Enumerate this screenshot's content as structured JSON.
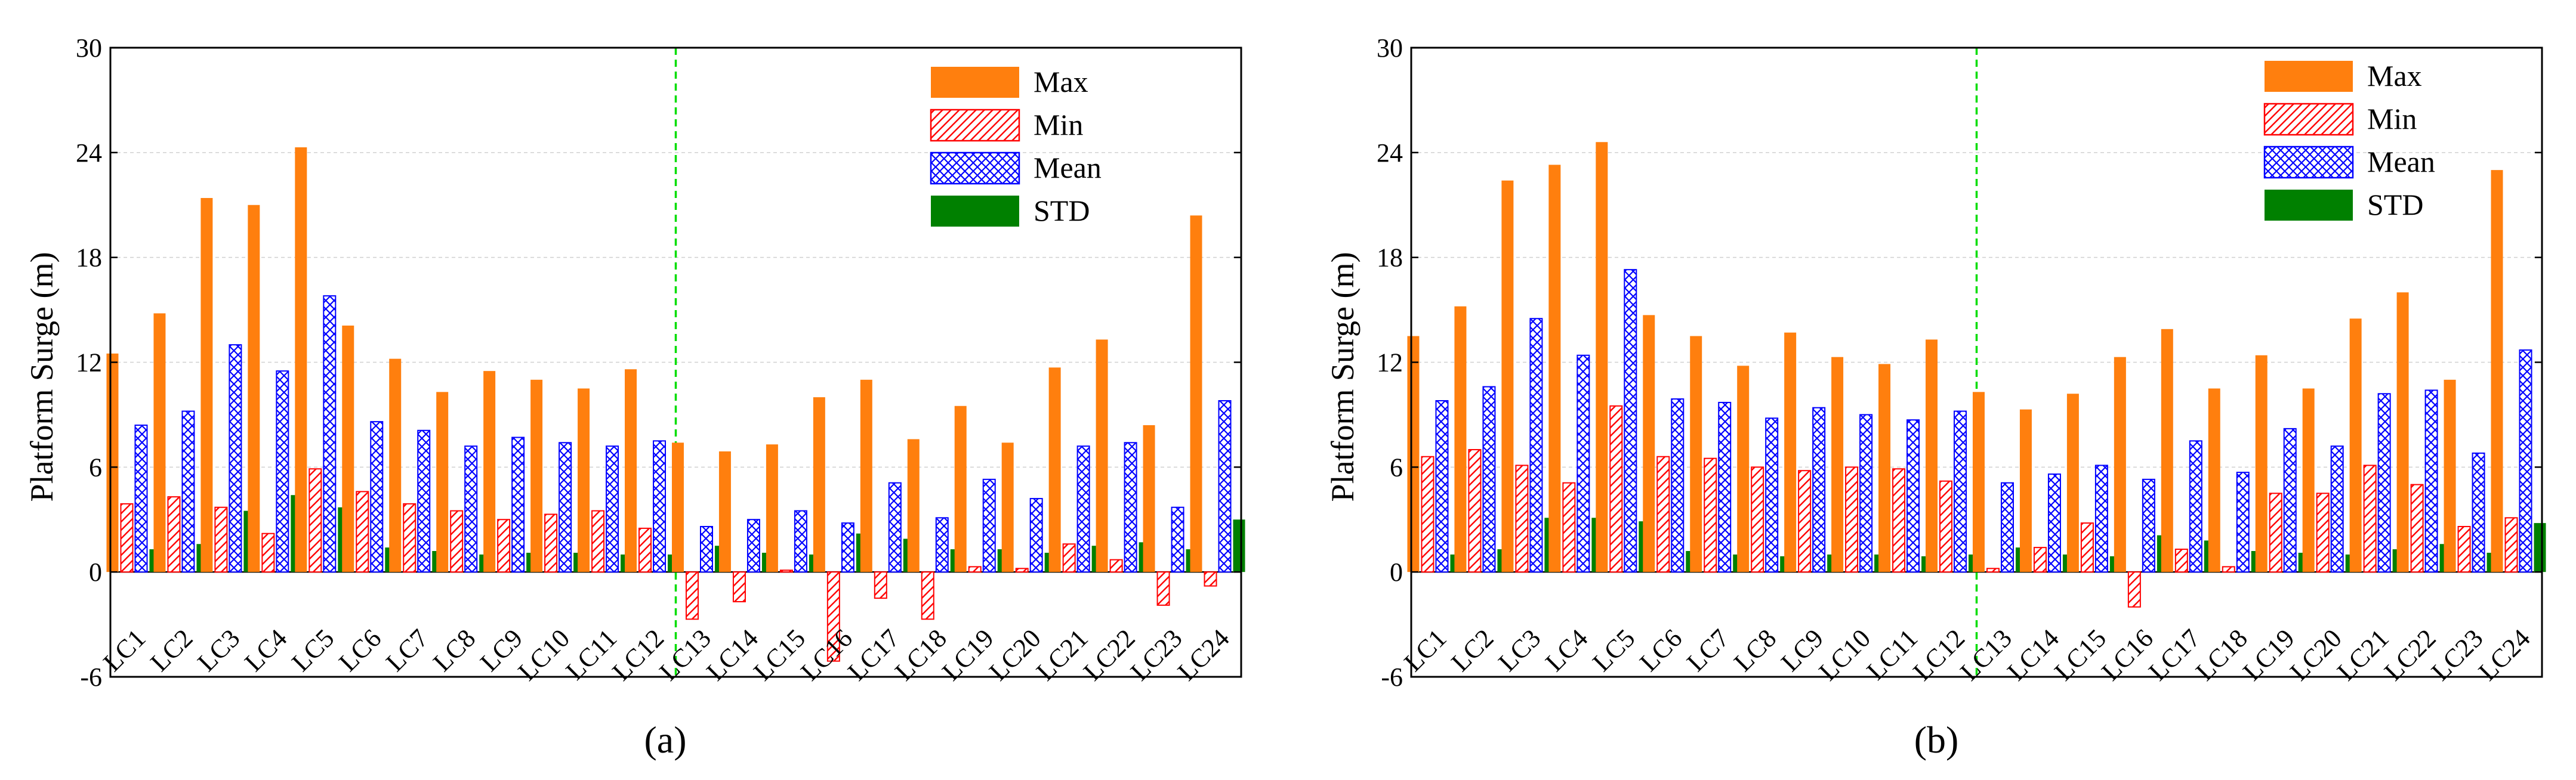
{
  "figure": {
    "panel_labels": [
      "(a)",
      "(b)"
    ]
  },
  "colors": {
    "max": "#ff7f0e",
    "min": "#ff0000",
    "mean": "#0000ff",
    "std": "#008000",
    "divider": "#00dd00",
    "grid": "#d0d0d0",
    "axis": "#000000"
  },
  "chart_data": [
    {
      "type": "bar",
      "panel": "(a)",
      "title": "",
      "xlabel": "",
      "ylabel": "Platform Surge (m)",
      "ylim": [
        -6,
        30
      ],
      "yticks": [
        -6,
        0,
        6,
        12,
        18,
        24,
        30
      ],
      "grid": true,
      "legend_position": "top-right",
      "divider_after": "LC12",
      "categories": [
        "LC1",
        "LC2",
        "LC3",
        "LC4",
        "LC5",
        "LC6",
        "LC7",
        "LC8",
        "LC9",
        "LC10",
        "LC11",
        "LC12",
        "LC13",
        "LC14",
        "LC15",
        "LC16",
        "LC17",
        "LC18",
        "LC19",
        "LC20",
        "LC21",
        "LC22",
        "LC23",
        "LC24"
      ],
      "series": [
        {
          "name": "Max",
          "values": [
            12.5,
            14.8,
            21.4,
            21.0,
            24.3,
            14.1,
            12.2,
            10.3,
            11.5,
            11.0,
            10.5,
            11.6,
            7.4,
            6.9,
            7.3,
            10.0,
            11.0,
            7.6,
            9.5,
            7.4,
            11.7,
            13.3,
            8.4,
            20.4
          ]
        },
        {
          "name": "Min",
          "values": [
            3.9,
            4.3,
            3.7,
            2.2,
            5.9,
            4.6,
            3.9,
            3.5,
            3.0,
            3.3,
            3.5,
            2.5,
            -2.7,
            -1.7,
            0.1,
            -5.1,
            -1.5,
            -2.7,
            0.3,
            0.2,
            1.6,
            0.7,
            -1.9,
            -0.8
          ]
        },
        {
          "name": "Mean",
          "values": [
            8.4,
            9.2,
            13.0,
            11.5,
            15.8,
            8.6,
            8.1,
            7.2,
            7.7,
            7.4,
            7.2,
            7.5,
            2.6,
            3.0,
            3.5,
            2.8,
            5.1,
            3.1,
            5.3,
            4.2,
            7.2,
            7.4,
            3.7,
            9.8
          ]
        },
        {
          "name": "STD",
          "values": [
            1.3,
            1.6,
            3.5,
            4.4,
            3.7,
            1.4,
            1.2,
            1.0,
            1.1,
            1.1,
            1.0,
            1.0,
            1.5,
            1.1,
            1.0,
            2.2,
            1.9,
            1.3,
            1.3,
            1.1,
            1.5,
            1.7,
            1.3,
            3.0
          ]
        }
      ]
    },
    {
      "type": "bar",
      "panel": "(b)",
      "title": "",
      "xlabel": "",
      "ylabel": "Platform Surge (m)",
      "ylim": [
        -6,
        30
      ],
      "yticks": [
        -6,
        0,
        6,
        12,
        18,
        24,
        30
      ],
      "grid": true,
      "legend_position": "top-right",
      "divider_after": "LC12",
      "categories": [
        "LC1",
        "LC2",
        "LC3",
        "LC4",
        "LC5",
        "LC6",
        "LC7",
        "LC8",
        "LC9",
        "LC10",
        "LC11",
        "LC12",
        "LC13",
        "LC14",
        "LC15",
        "LC16",
        "LC17",
        "LC18",
        "LC19",
        "LC20",
        "LC21",
        "LC22",
        "LC23",
        "LC24"
      ],
      "series": [
        {
          "name": "Max",
          "values": [
            13.5,
            15.2,
            22.4,
            23.3,
            24.6,
            14.7,
            13.5,
            11.8,
            13.7,
            12.3,
            11.9,
            13.3,
            10.3,
            9.3,
            10.2,
            12.3,
            13.9,
            10.5,
            12.4,
            10.5,
            14.5,
            16.0,
            11.0,
            23.0
          ]
        },
        {
          "name": "Min",
          "values": [
            6.6,
            7.0,
            6.1,
            5.1,
            9.5,
            6.6,
            6.5,
            6.0,
            5.8,
            6.0,
            5.9,
            5.2,
            0.2,
            1.4,
            2.8,
            -2.0,
            1.3,
            0.3,
            4.5,
            4.5,
            6.1,
            5.0,
            2.6,
            3.1
          ]
        },
        {
          "name": "Mean",
          "values": [
            9.8,
            10.6,
            14.5,
            12.4,
            17.3,
            9.9,
            9.7,
            8.8,
            9.4,
            9.0,
            8.7,
            9.2,
            5.1,
            5.6,
            6.1,
            5.3,
            7.5,
            5.7,
            8.2,
            7.2,
            10.2,
            10.4,
            6.8,
            12.7
          ]
        },
        {
          "name": "STD",
          "values": [
            1.0,
            1.3,
            3.1,
            3.1,
            2.9,
            1.2,
            1.0,
            0.9,
            1.0,
            1.0,
            0.9,
            1.0,
            1.4,
            1.0,
            0.9,
            2.1,
            1.8,
            1.2,
            1.1,
            1.0,
            1.3,
            1.6,
            1.1,
            2.8
          ]
        }
      ]
    }
  ]
}
